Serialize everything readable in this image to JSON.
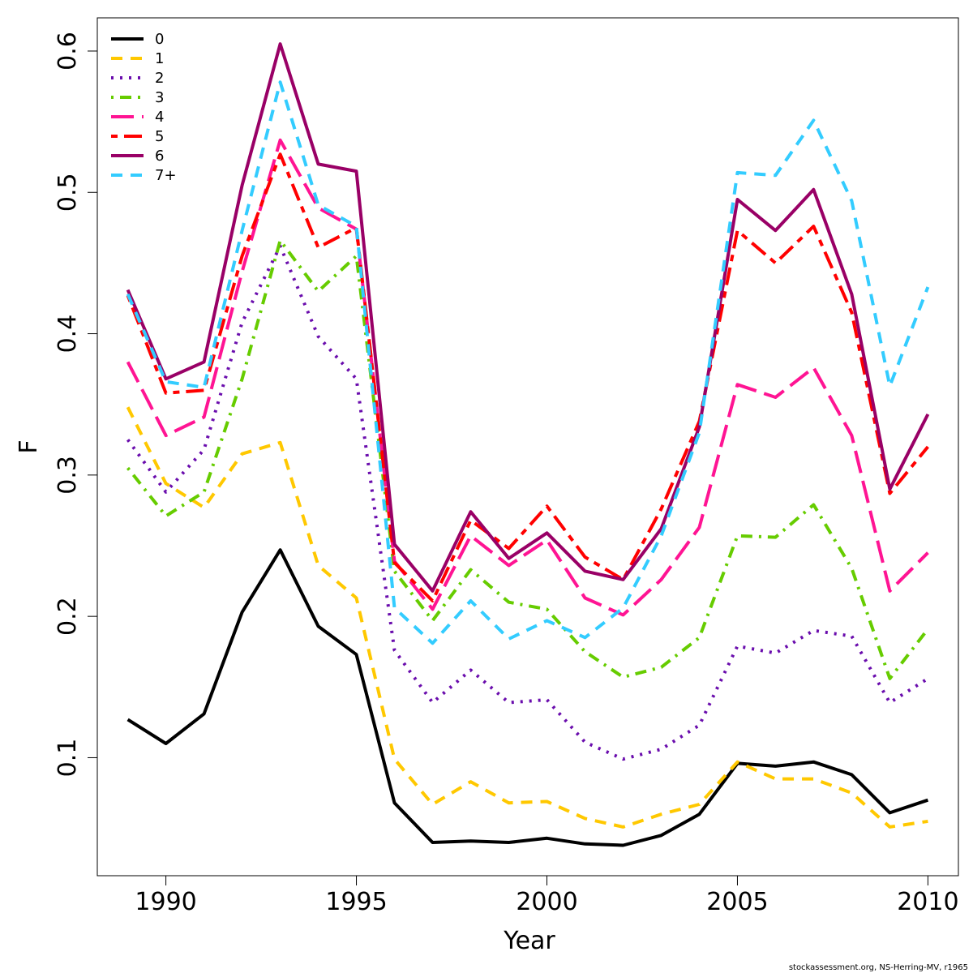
{
  "chart_data": {
    "type": "line",
    "xlabel": "Year",
    "ylabel": "F",
    "xlim": [
      1988.2,
      2010.8
    ],
    "ylim": [
      0.0165,
      0.6235
    ],
    "x_ticks": [
      1990,
      1995,
      2000,
      2005,
      2010
    ],
    "y_ticks": [
      0.1,
      0.2,
      0.3,
      0.4,
      0.5,
      0.6
    ],
    "x_tick_labels": [
      "1990",
      "1995",
      "2000",
      "2005",
      "2010"
    ],
    "y_tick_labels": [
      "0.1",
      "0.2",
      "0.3",
      "0.4",
      "0.5",
      "0.6"
    ],
    "legend_position": "top-left",
    "x": [
      1989,
      1990,
      1991,
      1992,
      1993,
      1994,
      1995,
      1996,
      1997,
      1998,
      1999,
      2000,
      2001,
      2002,
      2003,
      2004,
      2005,
      2006,
      2007,
      2008,
      2009,
      2010
    ],
    "series": [
      {
        "name": "0",
        "color": "#000000",
        "dash": "solid",
        "values": [
          0.127,
          0.11,
          0.131,
          0.203,
          0.247,
          0.193,
          0.173,
          0.068,
          0.04,
          0.041,
          0.04,
          0.043,
          0.039,
          0.038,
          0.045,
          0.06,
          0.096,
          0.094,
          0.097,
          0.088,
          0.061,
          0.07
        ]
      },
      {
        "name": "1",
        "color": "#FFC800",
        "dash": "dashed",
        "values": [
          0.348,
          0.294,
          0.277,
          0.315,
          0.323,
          0.236,
          0.213,
          0.099,
          0.067,
          0.083,
          0.068,
          0.069,
          0.057,
          0.051,
          0.06,
          0.067,
          0.097,
          0.085,
          0.085,
          0.075,
          0.051,
          0.055
        ]
      },
      {
        "name": "2",
        "color": "#6A0DAD",
        "dash": "dotted",
        "values": [
          0.325,
          0.288,
          0.318,
          0.408,
          0.462,
          0.398,
          0.368,
          0.176,
          0.139,
          0.162,
          0.139,
          0.141,
          0.111,
          0.099,
          0.106,
          0.123,
          0.179,
          0.174,
          0.19,
          0.186,
          0.139,
          0.156
        ]
      },
      {
        "name": "3",
        "color": "#66CC00",
        "dash": "dotdash",
        "values": [
          0.305,
          0.271,
          0.288,
          0.368,
          0.466,
          0.43,
          0.455,
          0.232,
          0.197,
          0.233,
          0.21,
          0.205,
          0.175,
          0.157,
          0.164,
          0.185,
          0.257,
          0.256,
          0.279,
          0.234,
          0.156,
          0.191
        ]
      },
      {
        "name": "4",
        "color": "#FF1493",
        "dash": "longdash",
        "values": [
          0.38,
          0.328,
          0.341,
          0.444,
          0.537,
          0.489,
          0.474,
          0.239,
          0.205,
          0.257,
          0.236,
          0.254,
          0.213,
          0.201,
          0.226,
          0.263,
          0.364,
          0.355,
          0.376,
          0.328,
          0.218,
          0.245
        ]
      },
      {
        "name": "5",
        "color": "#FF0000",
        "dash": "twodash",
        "values": [
          0.427,
          0.358,
          0.36,
          0.455,
          0.527,
          0.461,
          0.475,
          0.238,
          0.211,
          0.268,
          0.248,
          0.278,
          0.242,
          0.226,
          0.276,
          0.338,
          0.473,
          0.45,
          0.476,
          0.415,
          0.287,
          0.32
        ]
      },
      {
        "name": "6",
        "color": "#990066",
        "dash": "solid",
        "values": [
          0.431,
          0.368,
          0.38,
          0.505,
          0.605,
          0.52,
          0.515,
          0.251,
          0.218,
          0.274,
          0.241,
          0.259,
          0.232,
          0.226,
          0.262,
          0.334,
          0.495,
          0.473,
          0.502,
          0.428,
          0.29,
          0.343
        ]
      },
      {
        "name": "7+",
        "color": "#33CCFF",
        "dash": "dashed",
        "values": [
          0.428,
          0.366,
          0.362,
          0.473,
          0.578,
          0.491,
          0.476,
          0.206,
          0.181,
          0.211,
          0.184,
          0.197,
          0.185,
          0.206,
          0.257,
          0.33,
          0.514,
          0.512,
          0.551,
          0.494,
          0.363,
          0.433
        ]
      }
    ]
  },
  "credit_text": "stockassessment.org, NS-Herring-MV, r1965"
}
